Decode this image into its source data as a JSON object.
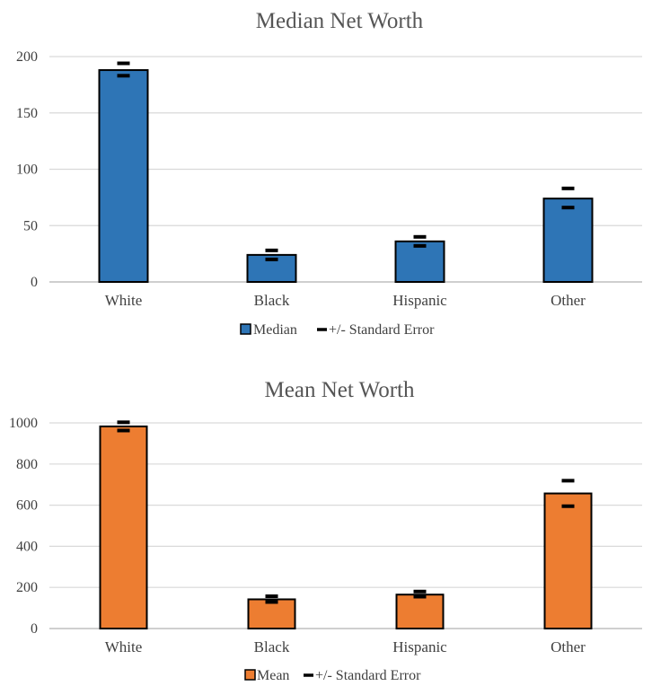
{
  "chart_data": [
    {
      "type": "bar",
      "title": "Median Net Worth",
      "categories": [
        "White",
        "Black",
        "Hispanic",
        "Other"
      ],
      "series": [
        {
          "name": "Median",
          "values": [
            188,
            24,
            36,
            74
          ],
          "color": "#2e75b6"
        }
      ],
      "error_bars": {
        "name": "+/- Standard Error",
        "upper": [
          194,
          28,
          40,
          83
        ],
        "lower": [
          183,
          20,
          32,
          66
        ]
      },
      "ylim": [
        0,
        200
      ],
      "yticks": [
        "0",
        "50",
        "100",
        "150",
        "200"
      ],
      "ytick_values": [
        0,
        50,
        100,
        150,
        200
      ],
      "grid": true,
      "legend_position": "bottom"
    },
    {
      "type": "bar",
      "title": "Mean Net Worth",
      "categories": [
        "White",
        "Black",
        "Hispanic",
        "Other"
      ],
      "series": [
        {
          "name": "Mean",
          "values": [
            983,
            142,
            165,
            657
          ],
          "color": "#ed7d31"
        }
      ],
      "error_bars": {
        "name": "+/- Standard Error",
        "upper": [
          1003,
          157,
          180,
          719
        ],
        "lower": [
          963,
          129,
          155,
          595
        ]
      },
      "ylim": [
        0,
        1000
      ],
      "yticks": [
        "0",
        "200",
        "400",
        "600",
        "800",
        "1000"
      ],
      "ytick_values": [
        0,
        200,
        400,
        600,
        800,
        1000
      ],
      "grid": true,
      "legend_position": "bottom"
    }
  ]
}
